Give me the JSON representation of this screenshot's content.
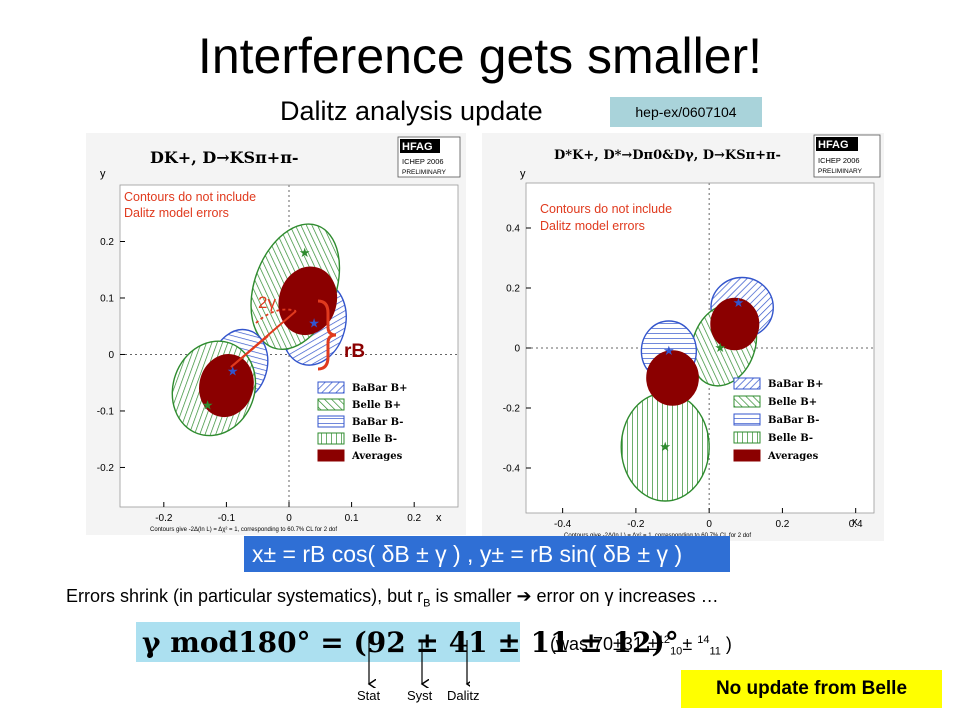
{
  "slide": {
    "title": "Interference gets smaller!",
    "subtitle": "Dalitz analysis update",
    "reference": "hep-ex/0607104",
    "formula": "x± = rB cos( δB ± γ ) , y± = rB sin( δB ± γ )",
    "statement": {
      "pre": "Errors shrink (in particular systematics), but r",
      "sub": "B",
      "post": " is smaller ➔ error on γ increases …"
    },
    "result": "γ mod180° = (92 ± 41 ± 11 ± 12)°",
    "previous": {
      "pre": "(was 70±31 ±",
      "a_sup": "12",
      "a_sub": "10",
      "mid": "± ",
      "b_sup": "14",
      "b_sub": "11",
      "post": " )"
    },
    "error_labels": [
      "Stat",
      "Syst",
      "Dalitz"
    ],
    "note": "No update from Belle"
  },
  "common": {
    "hfag_logo": "HFAG",
    "hfag_conf": "ICHEP 2006",
    "hfag_status": "PRELIMINARY",
    "contour_note_lines": [
      "Contours do not include",
      "Dalitz model errors"
    ],
    "footnote": "Contours give -2Δ(ln L) = Δχ² = 1, corresponding to 60.7% CL for 2 dof",
    "legend": [
      "BaBar B+",
      "Belle B+",
      "BaBar B-",
      "Belle B-",
      "Averages"
    ],
    "colors": {
      "babar": "#3355cc",
      "belle": "#2e8b2e",
      "average": "#8b0000",
      "note": "#e03a1e"
    }
  },
  "chart_data": [
    {
      "type": "scatter",
      "title": "DK+, D→KSπ+π-",
      "xlabel": "x",
      "ylabel": "y",
      "xlim": [
        -0.27,
        0.27
      ],
      "ylim": [
        -0.27,
        0.3
      ],
      "xticks": [
        -0.2,
        -0.1,
        0,
        0.1,
        0.2
      ],
      "yticks": [
        -0.2,
        -0.1,
        0,
        0.1,
        0.2
      ],
      "annotations": [
        "2γ",
        "rB"
      ],
      "series": [
        {
          "name": "BaBar B+",
          "cx": 0.04,
          "cy": 0.055,
          "rx": 0.05,
          "ry": 0.075,
          "rot": 15
        },
        {
          "name": "Belle B+",
          "cx": 0.01,
          "cy": 0.12,
          "rx": 0.065,
          "ry": 0.115,
          "rot": 20
        },
        {
          "name": "BaBar B-",
          "cx": -0.08,
          "cy": -0.02,
          "rx": 0.045,
          "ry": 0.065,
          "rot": 15
        },
        {
          "name": "Belle B-",
          "cx": -0.12,
          "cy": -0.06,
          "rx": 0.065,
          "ry": 0.085,
          "rot": 20
        },
        {
          "name": "Average B+",
          "cx": 0.03,
          "cy": 0.095,
          "rx": 0.045,
          "ry": 0.06,
          "rot": 15
        },
        {
          "name": "Average B-",
          "cx": -0.1,
          "cy": -0.055,
          "rx": 0.042,
          "ry": 0.055,
          "rot": 15
        }
      ],
      "markers": [
        {
          "x": 0.04,
          "y": 0.055,
          "color": "babar"
        },
        {
          "x": 0.025,
          "y": 0.18,
          "color": "belle"
        },
        {
          "x": -0.09,
          "y": -0.03,
          "color": "babar"
        },
        {
          "x": -0.13,
          "y": -0.09,
          "color": "belle"
        }
      ],
      "grid": false
    },
    {
      "type": "scatter",
      "title": "D*K+, D*→Dπ0&Dγ, D→KSπ+π-",
      "xlabel": "x",
      "ylabel": "y",
      "xlim": [
        -0.5,
        0.45
      ],
      "ylim": [
        -0.55,
        0.55
      ],
      "xticks": [
        -0.4,
        -0.2,
        0,
        0.2,
        0.4
      ],
      "yticks": [
        -0.4,
        -0.2,
        0,
        0.2,
        0.4
      ],
      "grid": false,
      "series": [
        {
          "name": "BaBar B+",
          "cx": 0.09,
          "cy": 0.135,
          "rx": 0.085,
          "ry": 0.1,
          "rot": 0
        },
        {
          "name": "Belle B+",
          "cx": 0.04,
          "cy": 0.01,
          "rx": 0.085,
          "ry": 0.14,
          "rot": 20
        },
        {
          "name": "BaBar B-",
          "cx": -0.11,
          "cy": -0.01,
          "rx": 0.075,
          "ry": 0.1,
          "rot": 0
        },
        {
          "name": "Belle B-",
          "cx": -0.12,
          "cy": -0.33,
          "rx": 0.12,
          "ry": 0.18,
          "rot": 0
        },
        {
          "name": "Average B+",
          "cx": 0.07,
          "cy": 0.08,
          "rx": 0.065,
          "ry": 0.085,
          "rot": 0
        },
        {
          "name": "Average B-",
          "cx": -0.1,
          "cy": -0.1,
          "rx": 0.07,
          "ry": 0.09,
          "rot": 0
        }
      ],
      "markers": [
        {
          "x": 0.08,
          "y": 0.15,
          "color": "babar"
        },
        {
          "x": 0.03,
          "y": 0.0,
          "color": "belle"
        },
        {
          "x": -0.11,
          "y": -0.01,
          "color": "babar"
        },
        {
          "x": -0.12,
          "y": -0.33,
          "color": "belle"
        }
      ]
    }
  ]
}
